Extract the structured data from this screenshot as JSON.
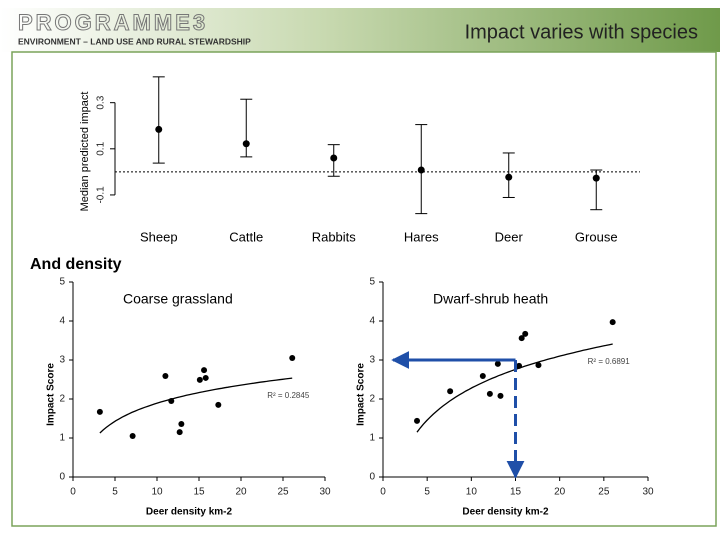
{
  "header": {
    "logo": "PROGRAMME3",
    "tagline": "ENVIRONMENT – LAND USE AND RURAL STEWARDSHIP",
    "title": "Impact varies with species"
  },
  "subheading": "And density",
  "chart_data": [
    {
      "type": "errorbar",
      "ylabel": "Median predicted impact",
      "categories": [
        "Sheep",
        "Cattle",
        "Rabbits",
        "Hares",
        "Deer",
        "Grouse"
      ],
      "values": [
        0.184,
        0.122,
        0.06,
        0.008,
        -0.023,
        -0.027
      ],
      "lower": [
        0.038,
        0.065,
        -0.019,
        -0.181,
        -0.111,
        -0.164
      ],
      "upper": [
        0.412,
        0.315,
        0.118,
        0.205,
        0.082,
        0.008
      ],
      "ylim": [
        -0.2,
        0.42
      ],
      "yticks": [
        -0.1,
        0.1,
        0.3
      ],
      "hline": 0,
      "color": "#000000"
    },
    {
      "type": "scatter",
      "title": "Coarse grassland",
      "xlabel": "Deer density km-2",
      "ylabel": "Impact Score",
      "x": [
        3.2,
        7.1,
        11.0,
        11.7,
        12.7,
        12.9,
        15.1,
        15.6,
        15.8,
        17.3,
        26.1
      ],
      "values": [
        1.67,
        1.05,
        2.59,
        1.95,
        1.15,
        1.36,
        2.49,
        2.74,
        2.54,
        1.85,
        3.05
      ],
      "xlim": [
        0,
        30
      ],
      "ylim": [
        0,
        5
      ],
      "xticks": [
        0,
        5,
        10,
        15,
        20,
        25,
        30
      ],
      "yticks": [
        0,
        1,
        2,
        3,
        4,
        5
      ],
      "trendline": {
        "kind": "log",
        "a": 0.35,
        "b": 0.67,
        "x_range": [
          3.2,
          26.1
        ]
      },
      "annotation": "R² = 0.2845",
      "color": "#000000"
    },
    {
      "type": "scatter",
      "title": "Dwarf-shrub heath",
      "xlabel": "Deer density km-2",
      "ylabel": "Impact Score",
      "x": [
        3.85,
        7.6,
        11.3,
        12.1,
        13.0,
        13.3,
        15.4,
        15.7,
        16.1,
        17.6,
        26.0
      ],
      "values": [
        1.44,
        2.2,
        2.59,
        2.13,
        2.9,
        2.08,
        2.85,
        3.56,
        3.67,
        2.87,
        3.97
      ],
      "xlim": [
        0,
        30
      ],
      "ylim": [
        0,
        5
      ],
      "xticks": [
        0,
        5,
        10,
        15,
        20,
        25,
        30
      ],
      "yticks": [
        0,
        1,
        2,
        3,
        4,
        5
      ],
      "trendline": {
        "kind": "log",
        "a": -0.445,
        "b": 1.183,
        "x_range": [
          3.85,
          26.0
        ]
      },
      "annotation": "R² = 0.6891",
      "color": "#000000",
      "projection": {
        "x": 15,
        "y": 3,
        "color": "#1f4fa8"
      }
    }
  ]
}
